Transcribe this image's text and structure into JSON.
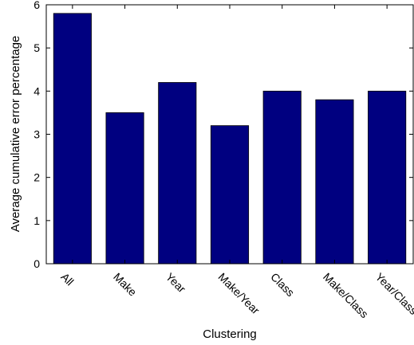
{
  "chart_data": {
    "type": "bar",
    "categories": [
      "All",
      "Make",
      "Year",
      "Make/Year",
      "Class",
      "Make/Class",
      "Year/Class"
    ],
    "values": [
      5.8,
      3.5,
      4.2,
      3.2,
      4.0,
      3.8,
      4.0
    ],
    "title": "",
    "xlabel": "Clustering",
    "ylabel": "Average cumulative error percentage",
    "ylim": [
      0,
      6
    ],
    "yticks": [
      0,
      1,
      2,
      3,
      4,
      5,
      6
    ],
    "grid": false,
    "legend": "none",
    "bar_color": "#000080",
    "axis_color": "#000000"
  }
}
